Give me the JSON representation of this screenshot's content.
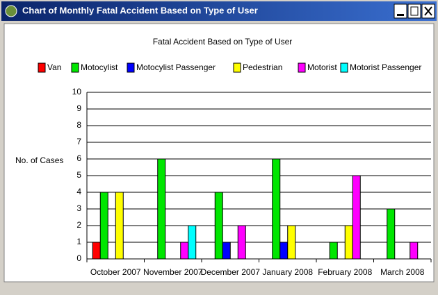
{
  "window": {
    "title": "Chart of Monthly Fatal Accident Based on Type of User"
  },
  "chart_data": {
    "type": "bar",
    "title": "Fatal Accident Based on Type of User",
    "y_label": "No. of Cases",
    "categories": [
      "October 2007",
      "November 2007",
      "December 2007",
      "January 2008",
      "February 2008",
      "March 2008"
    ],
    "series": [
      {
        "name": "Van",
        "color": "#ff0000",
        "values": [
          1,
          0,
          0,
          0,
          0,
          0
        ]
      },
      {
        "name": "Motocylist",
        "color": "#00e600",
        "values": [
          4,
          6,
          4,
          6,
          1,
          3
        ]
      },
      {
        "name": "Motocylist Passenger",
        "color": "#0000ff",
        "values": [
          0,
          0,
          1,
          1,
          0,
          0
        ]
      },
      {
        "name": "Pedestrian",
        "color": "#ffff00",
        "values": [
          4,
          0,
          0,
          2,
          2,
          0
        ]
      },
      {
        "name": "Motorist",
        "color": "#ff00ff",
        "values": [
          0,
          1,
          2,
          0,
          5,
          1
        ]
      },
      {
        "name": "Motorist Passenger",
        "color": "#00ffff",
        "values": [
          0,
          2,
          0,
          0,
          0,
          0
        ]
      }
    ],
    "ylim": [
      0,
      10
    ],
    "yticks": [
      0,
      1,
      2,
      3,
      4,
      5,
      6,
      7,
      8,
      9,
      10
    ],
    "grid": true,
    "legend": "top"
  }
}
